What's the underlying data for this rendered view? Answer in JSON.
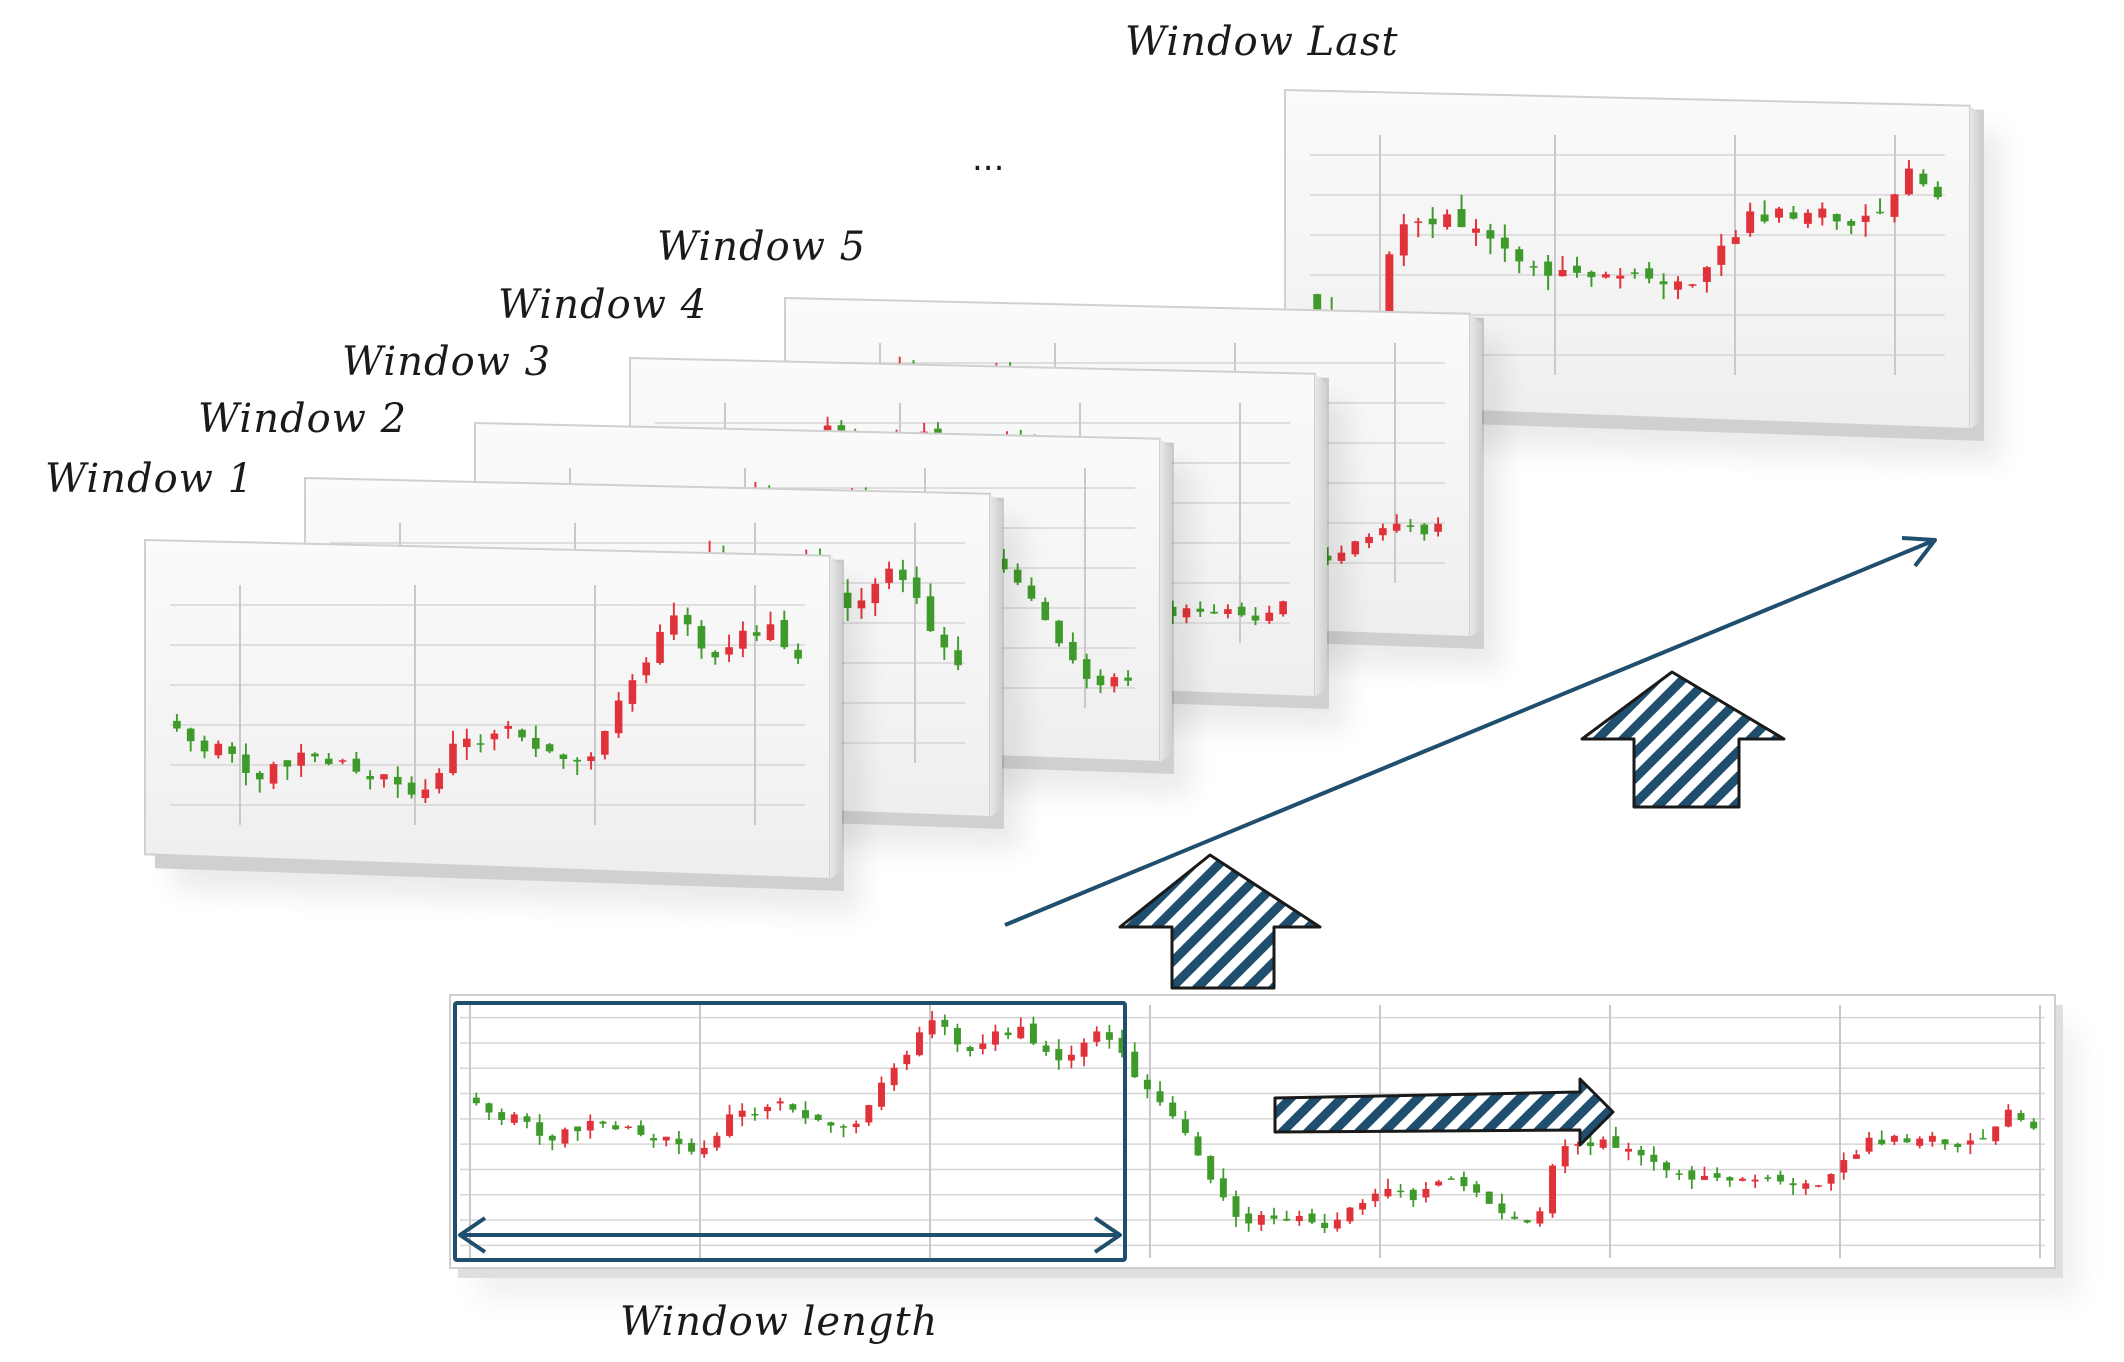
{
  "labels": {
    "window_1": "Window 1",
    "window_2": "Window 2",
    "window_3": "Window 3",
    "window_4": "Window 4",
    "window_5": "Window 5",
    "ellipsis": "...",
    "window_last": "Window Last",
    "window_length": "Window length"
  },
  "colors": {
    "up_candle": "#e0323a",
    "down_candle": "#3f9a2c",
    "frame_stroke": "#1f4e6e",
    "arrow_fill": "#1f4e6e",
    "panel_bg": "#f4f4f4",
    "grid": "#d6d6d6"
  },
  "icons": {
    "diagonal_arrow": "arrow-up-right-icon",
    "block_arrows": "hatched-up-arrow-icon",
    "forward_arrow": "hatched-right-arrow-icon",
    "length_arrow": "double-headed-arrow-icon"
  },
  "series_close": [
    55,
    54,
    53.2,
    53.8,
    53,
    51.5,
    51,
    52.2,
    52,
    53.1,
    52.8,
    52.2,
    52.5,
    51.6,
    51,
    51.4,
    50.6,
    49.8,
    50.2,
    51.5,
    53.8,
    54.2,
    53.8,
    54.6,
    55.2,
    54.3,
    53.4,
    53.2,
    52.6,
    52.4,
    52.8,
    54.8,
    57.2,
    58.8,
    60.2,
    62.6,
    63.9,
    63.2,
    61.3,
    60.6,
    61.4,
    62.7,
    62.3,
    63.2,
    61.4,
    60.5,
    59.6,
    60.2,
    61.5,
    62.7,
    61.8,
    60.4,
    57.8,
    56.5,
    55.1,
    53.6,
    51.8,
    49.4,
    46.8,
    44.9,
    42.8,
    42.1,
    43,
    42.6,
    42.4,
    42.9,
    42.2,
    41.6,
    42.5,
    43.8,
    44.3,
    45.3,
    45.8,
    45.5,
    44.6,
    45.8,
    46.6,
    46.8,
    46.1,
    45.4,
    44.2,
    43.2,
    42.6,
    42.2,
    43.4,
    48.3,
    50.4,
    50.6,
    50.4,
    51.1,
    50.2,
    50.1,
    49.4,
    48.7,
    47.8,
    47.4,
    46.8,
    47.2,
    47,
    46.7,
    46.9,
    46.8,
    47,
    46.6,
    46.2,
    46.4,
    46.2,
    47.4,
    48.9,
    49.5,
    51.3,
    50.6,
    51.5,
    50.8,
    51.2,
    51.5,
    50.6,
    50.3,
    51,
    51.2,
    52.5,
    54.3,
    53.2,
    52.3
  ]
}
